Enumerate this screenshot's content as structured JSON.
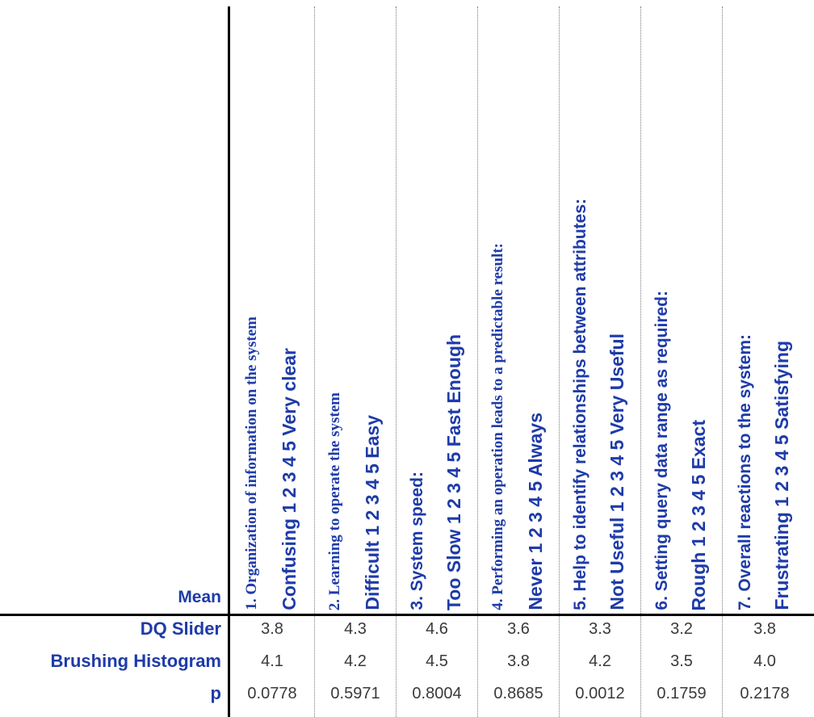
{
  "header": {
    "mean_label": "Mean"
  },
  "questions": [
    {
      "title": "1. Organization of information on the system",
      "scale": "Confusing 1 2 3 4 5 Very clear"
    },
    {
      "title": "2. Learning to operate the system",
      "scale": "Difficult 1 2 3 4 5 Easy"
    },
    {
      "title": "3. System speed:",
      "scale": "Too Slow 1 2 3 4 5 Fast Enough"
    },
    {
      "title": "4. Performing an operation leads to a predictable result:",
      "scale": "Never 1 2 3 4 5 Always"
    },
    {
      "title": "5. Help to identify relationships between attributes:",
      "scale": "Not Useful 1 2 3 4 5 Very Useful"
    },
    {
      "title": "6. Setting query data range as required:",
      "scale": "Rough 1 2 3 4 5 Exact"
    },
    {
      "title": "7. Overall reactions to the system:",
      "scale": "Frustrating 1 2 3 4 5 Satisfying"
    }
  ],
  "rows": [
    {
      "label": "DQ Slider",
      "values": [
        "3.8",
        "4.3",
        "4.6",
        "3.6",
        "3.3",
        "3.2",
        "3.8"
      ]
    },
    {
      "label": "Brushing Histogram",
      "values": [
        "4.1",
        "4.2",
        "4.5",
        "3.8",
        "4.2",
        "3.5",
        "4.0"
      ]
    },
    {
      "label": "p",
      "values": [
        "0.0778",
        "0.5971",
        "0.8004",
        "0.8685",
        "0.0012",
        "0.1759",
        "0.2178"
      ]
    }
  ]
}
